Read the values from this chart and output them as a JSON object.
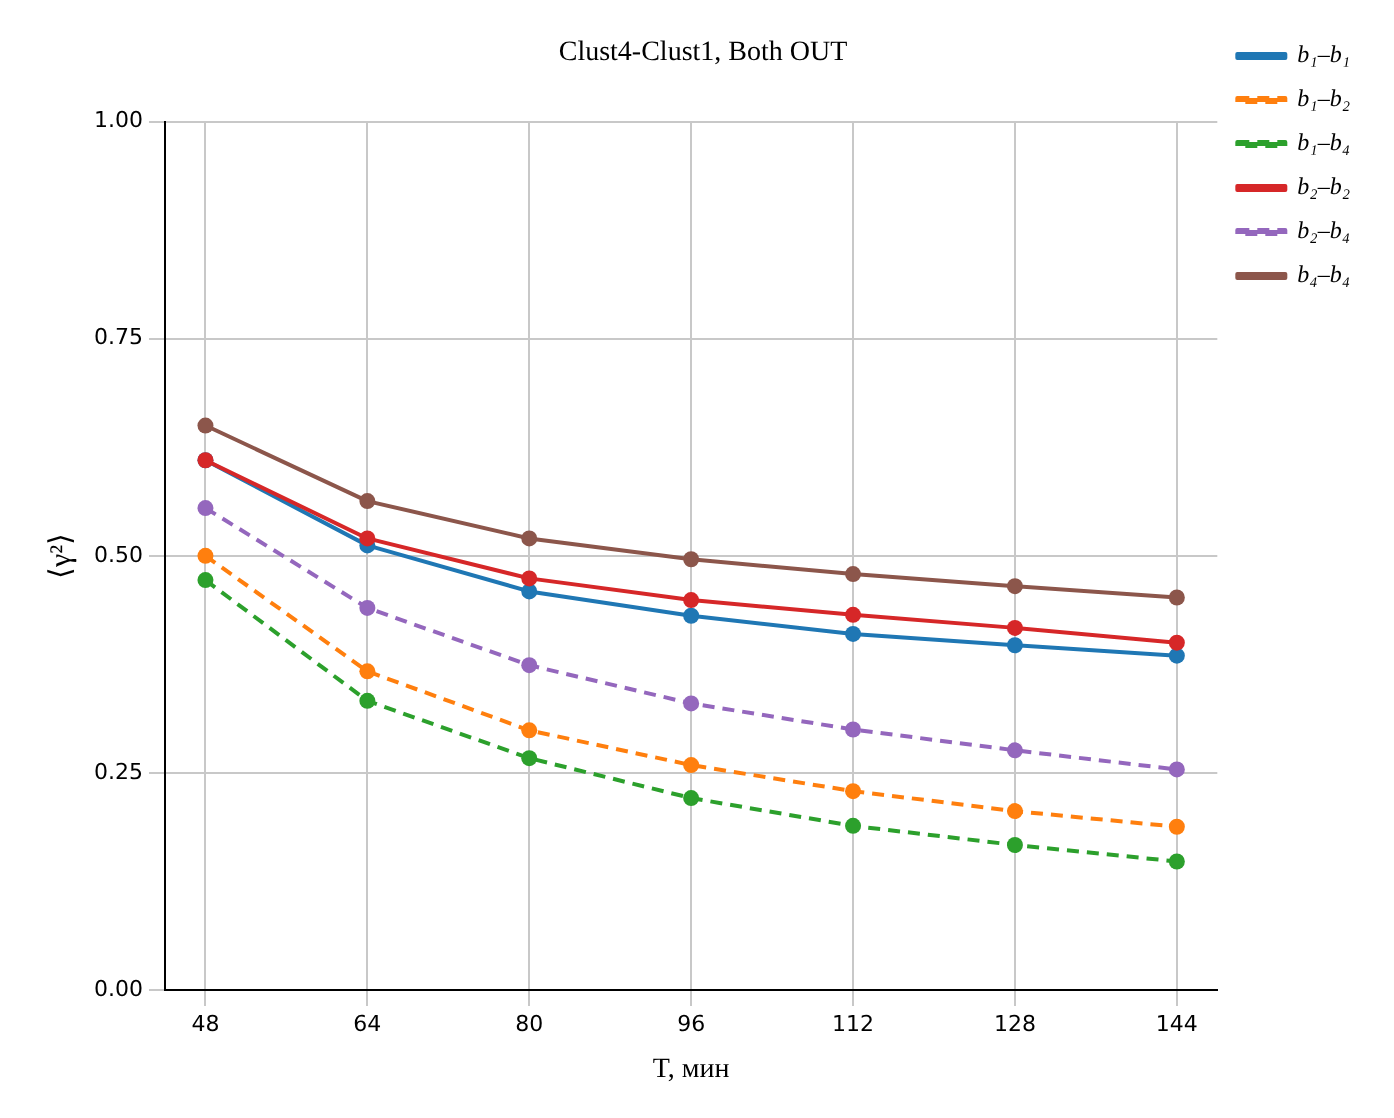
{
  "chart_data": {
    "type": "line",
    "title": "Clust4-Clust1, Both OUT",
    "xlabel": "T, мин",
    "ylabel": "⟨γ²⟩",
    "x": [
      48,
      64,
      80,
      96,
      112,
      128,
      144
    ],
    "xlim": [
      44,
      148
    ],
    "xticks": [
      48,
      64,
      80,
      96,
      112,
      128,
      144
    ],
    "ylim": [
      0,
      1
    ],
    "yticks": [
      {
        "value": 0,
        "label": "0.00"
      },
      {
        "value": 0.25,
        "label": "0.25"
      },
      {
        "value": 0.5,
        "label": "0.50"
      },
      {
        "value": 0.75,
        "label": "0.75"
      },
      {
        "value": 1,
        "label": "1.00"
      }
    ],
    "grid": true,
    "legend": "top right",
    "marker": "circle",
    "series": [
      {
        "name": "b₁–b₁",
        "color": "#1f77b4",
        "line_style": "solid",
        "values": [
          0.61,
          0.512,
          0.459,
          0.431,
          0.41,
          0.397,
          0.385
        ]
      },
      {
        "name": "b₁–b₂",
        "color": "#ff7f0e",
        "line_style": "dashed",
        "values": [
          0.5,
          0.367,
          0.299,
          0.259,
          0.229,
          0.206,
          0.188
        ]
      },
      {
        "name": "b₁–b₄",
        "color": "#2ca02c",
        "line_style": "dashed",
        "values": [
          0.472,
          0.333,
          0.267,
          0.221,
          0.189,
          0.167,
          0.148
        ]
      },
      {
        "name": "b₂–b₂",
        "color": "#d62728",
        "line_style": "solid",
        "values": [
          0.61,
          0.52,
          0.474,
          0.449,
          0.432,
          0.417,
          0.4
        ]
      },
      {
        "name": "b₂–b₄",
        "color": "#9467bd",
        "line_style": "dashed",
        "values": [
          0.555,
          0.44,
          0.374,
          0.33,
          0.3,
          0.276,
          0.254
        ]
      },
      {
        "name": "b₄–b₄",
        "color": "#8c564b",
        "line_style": "solid",
        "values": [
          0.65,
          0.563,
          0.52,
          0.496,
          0.479,
          0.465,
          0.452
        ]
      }
    ]
  }
}
